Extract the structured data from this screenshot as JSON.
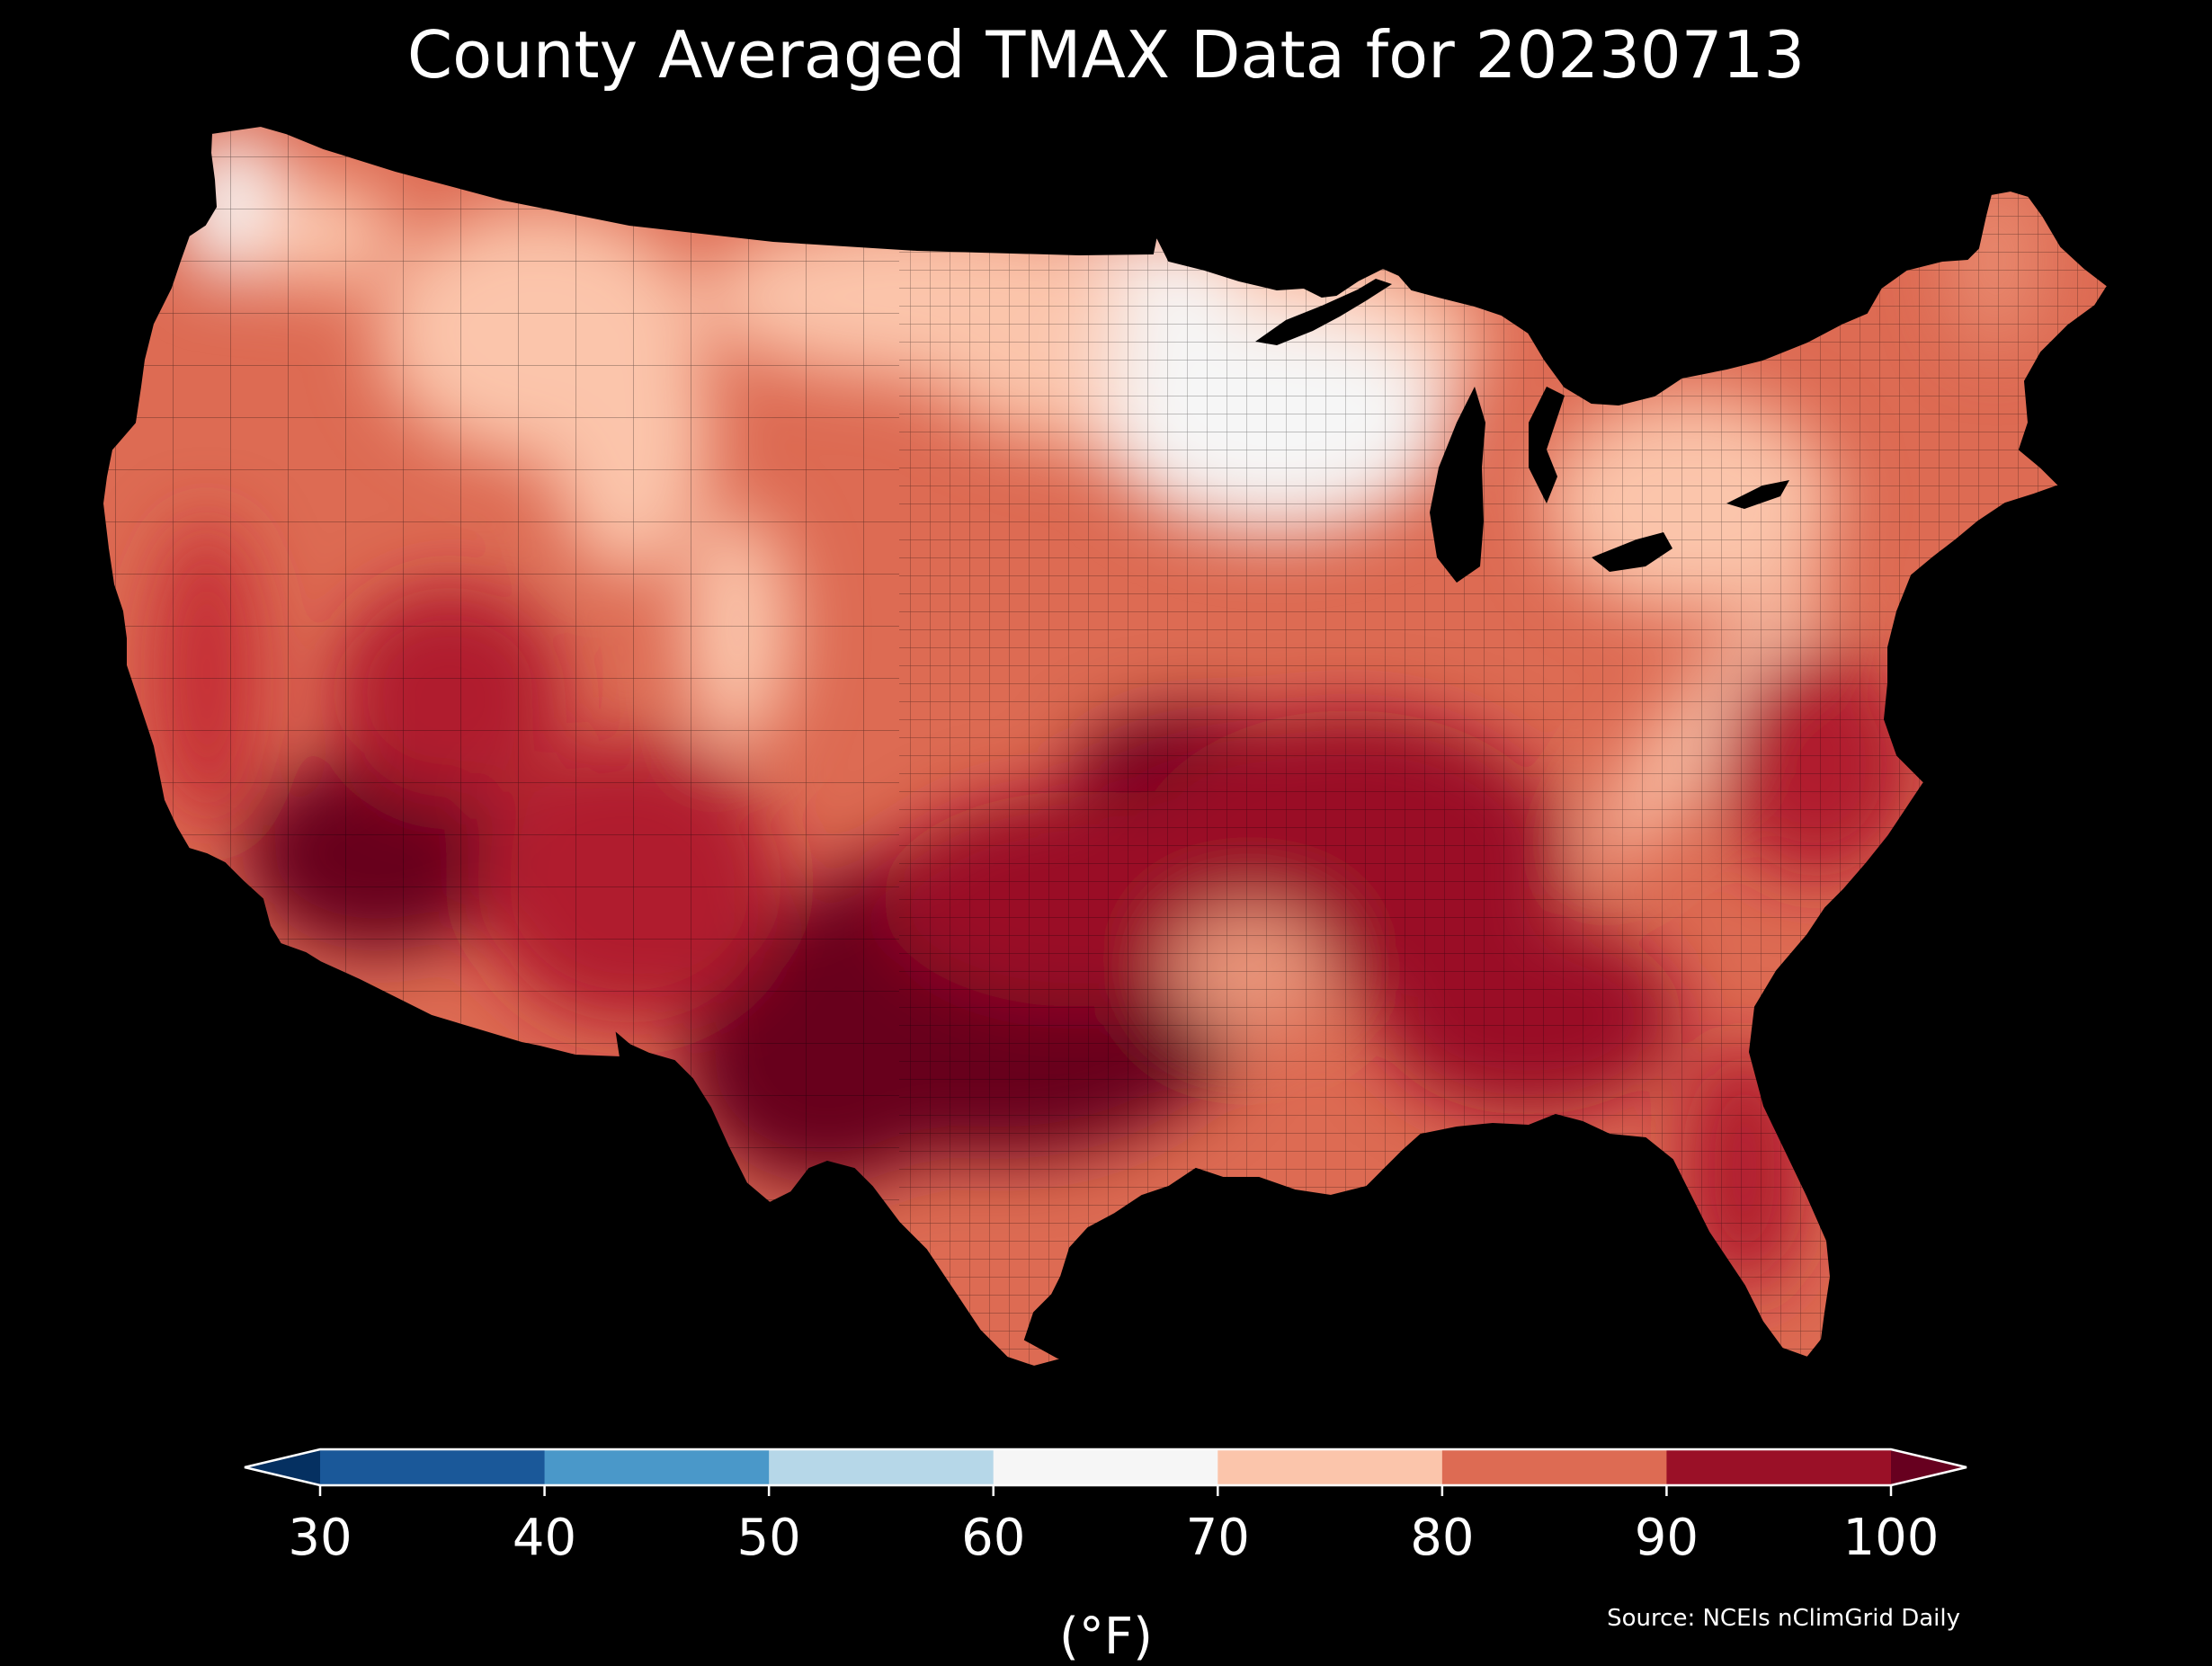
{
  "title": "County Averaged TMAX Data for 20230713",
  "colorbar": {
    "ticks": [
      "30",
      "40",
      "50",
      "60",
      "70",
      "80",
      "90",
      "100"
    ],
    "unit": "(°F)",
    "bins": [
      {
        "from": 30,
        "to": 40,
        "color": "#1a5899"
      },
      {
        "from": 40,
        "to": 50,
        "color": "#4a98c9"
      },
      {
        "from": 50,
        "to": 60,
        "color": "#b6d7e8"
      },
      {
        "from": 60,
        "to": 70,
        "color": "#f6f6f6"
      },
      {
        "from": 70,
        "to": 80,
        "color": "#fbc5ab"
      },
      {
        "from": 80,
        "to": 90,
        "color": "#dd6b53"
      },
      {
        "from": 90,
        "to": 100,
        "color": "#9a1027"
      }
    ],
    "under_color": "#053061",
    "over_color": "#67001f"
  },
  "source": "Source: NCEIs nClimGrid Daily",
  "background_color": "#000000",
  "water_color": "#000000",
  "map": {
    "region": "Contiguous United States",
    "variable": "TMAX",
    "units": "°F",
    "date": "20230713"
  }
}
